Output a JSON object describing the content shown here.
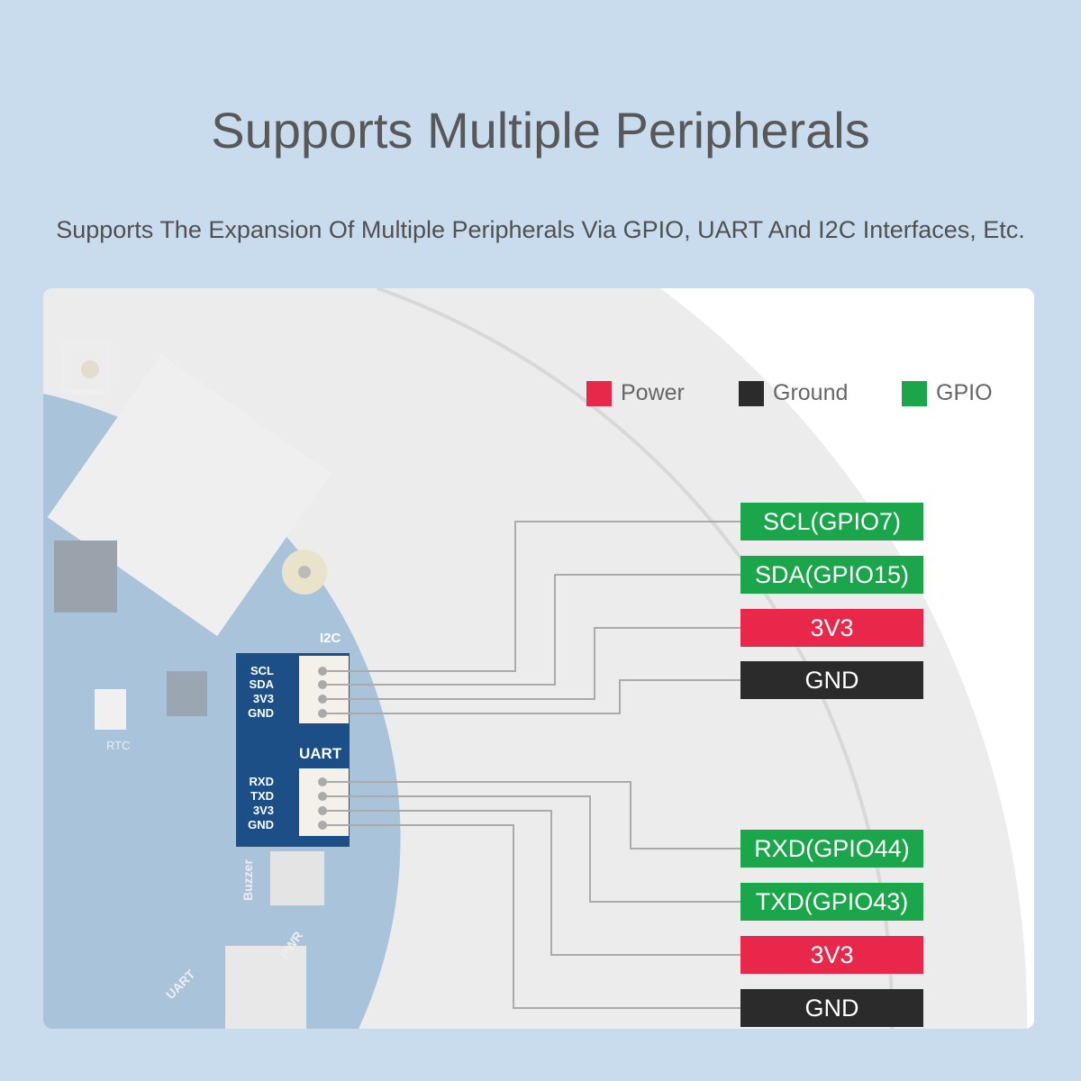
{
  "title": "Supports Multiple Peripherals",
  "subtitle": "Supports The Expansion Of Multiple Peripherals Via GPIO, UART And I2C Interfaces, Etc.",
  "colors": {
    "power": "#e8274b",
    "ground": "#2b2b2b",
    "gpio": "#1ba64b",
    "background": "#c9dcee"
  },
  "legend": [
    {
      "label": "Power",
      "type": "power"
    },
    {
      "label": "Ground",
      "type": "ground"
    },
    {
      "label": "GPIO",
      "type": "gpio"
    }
  ],
  "board": {
    "i2c_label": "I2C",
    "uart_label": "UART",
    "i2c_pins": [
      "SCL",
      "SDA",
      "3V3",
      "GND"
    ],
    "uart_pins": [
      "RXD",
      "TXD",
      "3V3",
      "GND"
    ],
    "silkscreen": [
      "RTC",
      "Buzzer",
      "PWR",
      "UART"
    ]
  },
  "i2c_outputs": [
    {
      "label": "SCL(GPIO7)",
      "type": "gpio"
    },
    {
      "label": "SDA(GPIO15)",
      "type": "gpio"
    },
    {
      "label": "3V3",
      "type": "power"
    },
    {
      "label": "GND",
      "type": "ground"
    }
  ],
  "uart_outputs": [
    {
      "label": "RXD(GPIO44)",
      "type": "gpio"
    },
    {
      "label": "TXD(GPIO43)",
      "type": "gpio"
    },
    {
      "label": "3V3",
      "type": "power"
    },
    {
      "label": "GND",
      "type": "ground"
    }
  ]
}
